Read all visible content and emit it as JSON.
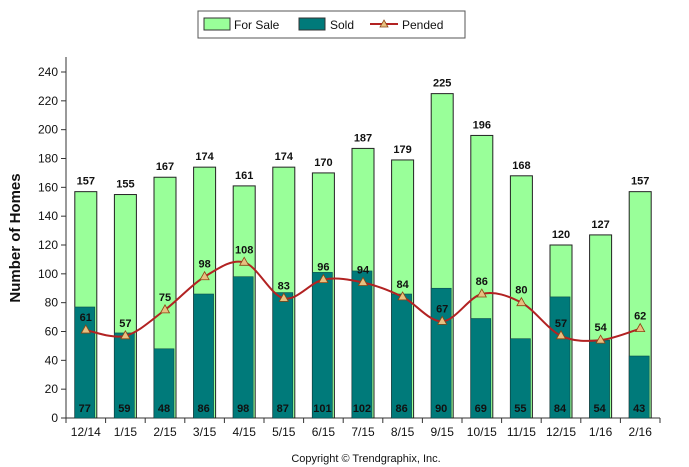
{
  "chart_data": {
    "type": "bar",
    "categories": [
      "12/14",
      "1/15",
      "2/15",
      "3/15",
      "4/15",
      "5/15",
      "6/15",
      "7/15",
      "8/15",
      "9/15",
      "10/15",
      "11/15",
      "12/15",
      "1/16",
      "2/16"
    ],
    "series": [
      {
        "name": "For Sale",
        "kind": "bar",
        "color": "#99ff99",
        "values": [
          157,
          155,
          167,
          174,
          161,
          174,
          170,
          187,
          179,
          225,
          196,
          168,
          120,
          127,
          157
        ]
      },
      {
        "name": "Sold",
        "kind": "bar",
        "color": "#007a7a",
        "values": [
          77,
          59,
          48,
          86,
          98,
          87,
          101,
          102,
          86,
          90,
          69,
          55,
          84,
          54,
          43
        ]
      },
      {
        "name": "Pended",
        "kind": "line",
        "color": "#b22222",
        "marker_color": "#e8c080",
        "values": [
          61,
          57,
          75,
          98,
          108,
          83,
          96,
          94,
          84,
          67,
          86,
          80,
          57,
          54,
          62
        ]
      }
    ],
    "ylabel": "Number of Homes",
    "ylim": [
      0,
      240
    ],
    "yticks": [
      0,
      20,
      40,
      60,
      80,
      100,
      120,
      140,
      160,
      180,
      200,
      220,
      240
    ],
    "legend": "top-center",
    "grid": false,
    "copyright": "Copyright © Trendgraphix, Inc."
  }
}
